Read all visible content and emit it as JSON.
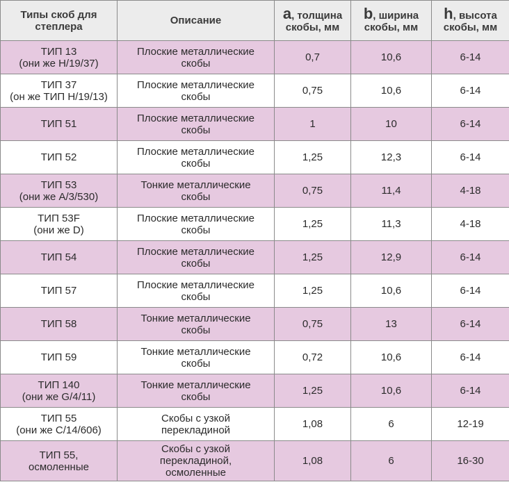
{
  "table": {
    "headers": {
      "type": "Типы скоб для степлера",
      "description": "Описание",
      "a_letter": "a",
      "a_text": ", толщина скобы, мм",
      "b_letter": "b",
      "b_text": ", ширина скобы, мм",
      "h_letter": "h",
      "h_text": ", высота скобы, мм"
    },
    "rows": [
      {
        "type_line1": "ТИП 13",
        "type_line2": "(они же Н/19/37)",
        "desc_line1": "Плоские металлические",
        "desc_line2": "скобы",
        "desc_line3": "",
        "a": "0,7",
        "b": "10,6",
        "h": "6-14"
      },
      {
        "type_line1": "ТИП 37",
        "type_line2": "(он же ТИП Н/19/13)",
        "desc_line1": "Плоские металлические",
        "desc_line2": "скобы",
        "desc_line3": "",
        "a": "0,75",
        "b": "10,6",
        "h": "6-14"
      },
      {
        "type_line1": "ТИП 51",
        "type_line2": "",
        "desc_line1": "Плоские металлические",
        "desc_line2": "скобы",
        "desc_line3": "",
        "a": "1",
        "b": "10",
        "h": "6-14"
      },
      {
        "type_line1": "ТИП 52",
        "type_line2": "",
        "desc_line1": "Плоские металлические",
        "desc_line2": "скобы",
        "desc_line3": "",
        "a": "1,25",
        "b": "12,3",
        "h": "6-14"
      },
      {
        "type_line1": "ТИП 53",
        "type_line2": "(они же А/3/530)",
        "desc_line1": "Тонкие металлические",
        "desc_line2": "скобы",
        "desc_line3": "",
        "a": "0,75",
        "b": "11,4",
        "h": "4-18"
      },
      {
        "type_line1": "ТИП 53F",
        "type_line2": "(они же D)",
        "desc_line1": "Плоские металлические",
        "desc_line2": "скобы",
        "desc_line3": "",
        "a": "1,25",
        "b": "11,3",
        "h": "4-18"
      },
      {
        "type_line1": "ТИП 54",
        "type_line2": "",
        "desc_line1": "Плоские металлические",
        "desc_line2": "скобы",
        "desc_line3": "",
        "a": "1,25",
        "b": "12,9",
        "h": "6-14"
      },
      {
        "type_line1": "ТИП 57",
        "type_line2": "",
        "desc_line1": "Плоские металлические",
        "desc_line2": "скобы",
        "desc_line3": "",
        "a": "1,25",
        "b": "10,6",
        "h": "6-14"
      },
      {
        "type_line1": "ТИП 58",
        "type_line2": "",
        "desc_line1": "Тонкие металлические",
        "desc_line2": "скобы",
        "desc_line3": "",
        "a": "0,75",
        "b": "13",
        "h": "6-14"
      },
      {
        "type_line1": "ТИП 59",
        "type_line2": "",
        "desc_line1": "Тонкие металлические",
        "desc_line2": "скобы",
        "desc_line3": "",
        "a": "0,72",
        "b": "10,6",
        "h": "6-14"
      },
      {
        "type_line1": "ТИП 140",
        "type_line2": "(они же G/4/11)",
        "desc_line1": "Тонкие металлические",
        "desc_line2": "скобы",
        "desc_line3": "",
        "a": "1,25",
        "b": "10,6",
        "h": "6-14"
      },
      {
        "type_line1": "ТИП 55",
        "type_line2": "(они же С/14/606)",
        "desc_line1": "Скобы с узкой",
        "desc_line2": "перекладиной",
        "desc_line3": "",
        "a": "1,08",
        "b": "6",
        "h": "12-19"
      },
      {
        "type_line1": "ТИП 55,",
        "type_line2": "осмоленные",
        "desc_line1": "Скобы с узкой",
        "desc_line2": "перекладиной,",
        "desc_line3": "осмоленные",
        "a": "1,08",
        "b": "6",
        "h": "16-30"
      }
    ],
    "colors": {
      "row_pink": "#e6c9e0",
      "row_white": "#ffffff",
      "header_bg": "#ececec",
      "border": "#8a8a8a"
    }
  }
}
